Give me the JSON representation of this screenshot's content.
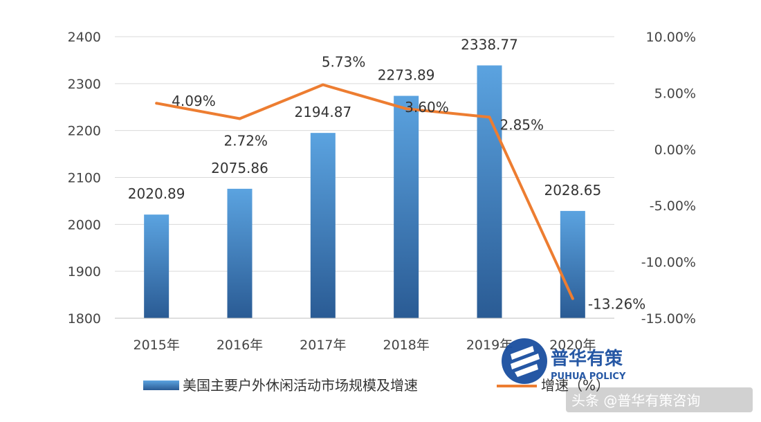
{
  "chart_data": {
    "type": "bar",
    "categories": [
      "2015年",
      "2016年",
      "2017年",
      "2018年",
      "2019年",
      "2020年"
    ],
    "series": [
      {
        "name": "美国主要户外休闲活动市场规模及增速",
        "type": "bar",
        "axis": "left",
        "values": [
          2020.89,
          2075.86,
          2194.87,
          2273.89,
          2338.77,
          2028.65
        ],
        "labels": [
          "2020.89",
          "2075.86",
          "2194.87",
          "2273.89",
          "2338.77",
          "2028.65"
        ]
      },
      {
        "name": "增速（%）",
        "type": "line",
        "axis": "right",
        "values": [
          4.09,
          2.72,
          5.73,
          3.6,
          2.85,
          -13.26
        ],
        "labels": [
          "4.09%",
          "2.72%",
          "5.73%",
          "3.60%",
          "2.85%",
          "-13.26%"
        ]
      }
    ],
    "y_left": {
      "ylim": [
        1800,
        2400
      ],
      "ticks": [
        1800,
        1900,
        2000,
        2100,
        2200,
        2300,
        2400
      ],
      "tick_labels": [
        "1800",
        "1900",
        "2000",
        "2100",
        "2200",
        "2300",
        "2400"
      ]
    },
    "y_right": {
      "ylim": [
        -15,
        10
      ],
      "ticks": [
        -15,
        -10,
        -5,
        0,
        5,
        10
      ],
      "tick_labels": [
        "-15.00%",
        "-10.00%",
        "-5.00%",
        "0.00%",
        "5.00%",
        "10.00%"
      ]
    },
    "title": "",
    "xlabel": "",
    "ylabel": "",
    "grid": "horizontal",
    "legend": "bottom",
    "colors": {
      "bar_top": "#5ba3e0",
      "bar_bottom": "#2a5b94",
      "line": "#ed7d31",
      "grid": "#d9d9d9"
    }
  },
  "watermark": {
    "title": "普华有策",
    "subtitle": "PUHUA POLICY"
  },
  "credit": "头条 @普华有策咨询"
}
